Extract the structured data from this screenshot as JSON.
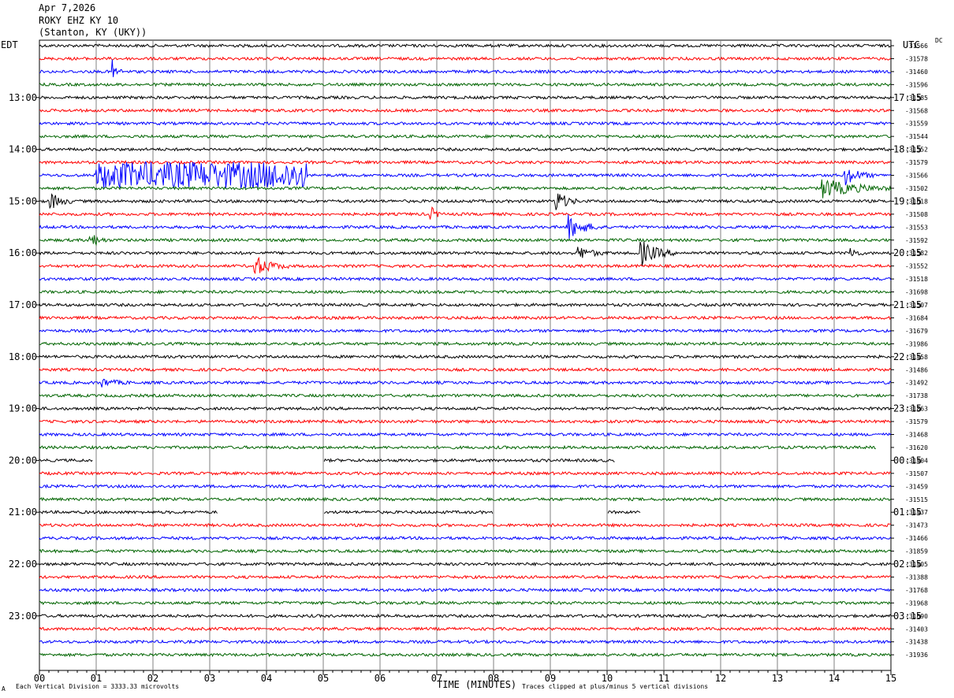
{
  "header": {
    "date": "Apr 7,2026",
    "station": "ROKY EHZ KY 10",
    "location": "(Stanton, KY (UKY))"
  },
  "left_tz": "EDT",
  "right_tz": "UTC",
  "dc_label": "DC",
  "footer": {
    "scale": "Each Vertical Division = 3333.33 microvolts",
    "clip": "Traces clipped at plus/minus 5 vertical divisions",
    "mark": "A"
  },
  "colors": {
    "c0": "#000000",
    "c1": "#ff0000",
    "c2": "#0000ff",
    "c3": "#006400",
    "grid": "#808080"
  },
  "chart_data": {
    "type": "line",
    "xlabel": "TIME (MINUTES)",
    "x_ticks": [
      "00",
      "01",
      "02",
      "03",
      "04",
      "05",
      "06",
      "07",
      "08",
      "09",
      "10",
      "11",
      "12",
      "13",
      "14",
      "15"
    ],
    "xlim": [
      0,
      15
    ],
    "traces_per_hour": 4,
    "edt_hours": [
      "13:00",
      "14:00",
      "15:00",
      "16:00",
      "17:00",
      "18:00",
      "19:00",
      "20:00",
      "21:00",
      "22:00",
      "23:00"
    ],
    "utc_hours": [
      "17:15",
      "18:15",
      "19:15",
      "20:15",
      "21:15",
      "22:15",
      "23:15",
      "00:15",
      "01:15",
      "02:15",
      "03:15"
    ],
    "dc_offsets": [
      "-31566",
      "-31578",
      "-31460",
      "-31596",
      "-31585",
      "-31568",
      "-31559",
      "-31544",
      "-31552",
      "-31579",
      "-31566",
      "-31502",
      "-31618",
      "-31508",
      "-31553",
      "-31592",
      "-31582",
      "-31552",
      "-31518",
      "-31698",
      "-31507",
      "-31684",
      "-31679",
      "-31986",
      "-31458",
      "-31486",
      "-31492",
      "-31738",
      "-31863",
      "-31579",
      "-31468",
      "-31620",
      "-31404",
      "-31507",
      "-31459",
      "-31515",
      "-31437",
      "-31473",
      "-31466",
      "-31859",
      "-31405",
      "-31388",
      "-31768",
      "-31968",
      "-31690",
      "-31403",
      "-31438",
      "-31936"
    ],
    "events": [
      {
        "trace": 2,
        "t": 1.3,
        "amp": 14,
        "dur": 0.15
      },
      {
        "trace": 10,
        "t": 14.2,
        "amp": 12,
        "dur": 0.5
      },
      {
        "trace": 11,
        "t": 13.8,
        "amp": 12,
        "dur": 1.2
      },
      {
        "trace": 12,
        "t": 0.2,
        "amp": 10,
        "dur": 0.4
      },
      {
        "trace": 12,
        "t": 9.1,
        "amp": 14,
        "dur": 0.4
      },
      {
        "trace": 13,
        "t": 6.9,
        "amp": 9,
        "dur": 0.2
      },
      {
        "trace": 14,
        "t": 9.3,
        "amp": 16,
        "dur": 0.6
      },
      {
        "trace": 15,
        "t": 0.9,
        "amp": 10,
        "dur": 0.3
      },
      {
        "trace": 16,
        "t": 9.5,
        "amp": 8,
        "dur": 0.5
      },
      {
        "trace": 16,
        "t": 10.6,
        "amp": 16,
        "dur": 0.6
      },
      {
        "trace": 16,
        "t": 14.3,
        "amp": 8,
        "dur": 0.2
      },
      {
        "trace": 17,
        "t": 3.8,
        "amp": 12,
        "dur": 0.6
      },
      {
        "trace": 26,
        "t": 1.1,
        "amp": 5,
        "dur": 0.5
      }
    ],
    "bursts": [
      {
        "trace": 10,
        "start": 1.0,
        "end": 4.7,
        "amp": 16
      }
    ],
    "gaps": [
      {
        "trace": 31,
        "start": 14.75,
        "end": 15.0
      },
      {
        "trace": 32,
        "start": 0.95,
        "end": 5.0
      },
      {
        "trace": 32,
        "start": 10.15,
        "end": 15.0
      },
      {
        "trace": 36,
        "start": 3.15,
        "end": 5.0
      },
      {
        "trace": 36,
        "start": 8.0,
        "end": 10.0
      },
      {
        "trace": 36,
        "start": 10.6,
        "end": 15.0
      }
    ]
  }
}
